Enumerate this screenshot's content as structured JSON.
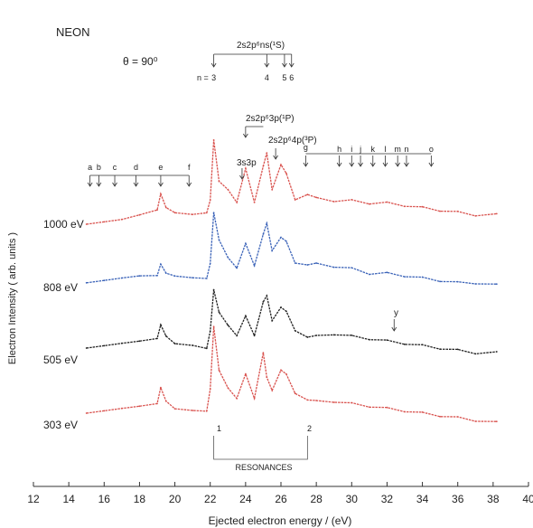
{
  "chart_data": {
    "type": "line",
    "title": "NEON",
    "angle_label": "θ = 90⁰",
    "xlabel": "Ejected electron energy / (eV)",
    "ylabel": "Electron Intensity ( arb. units )",
    "xlim": [
      12,
      40
    ],
    "x_ticks": [
      "12",
      "14",
      "16",
      "18",
      "20",
      "22",
      "24",
      "26",
      "28",
      "30",
      "32",
      "34",
      "36",
      "38",
      "40"
    ],
    "grid": false,
    "legend": "none",
    "series": [
      {
        "name": "1000  eV",
        "color": "#d9534f",
        "x": [
          15.0,
          16.0,
          17.0,
          18.0,
          19.0,
          19.2,
          19.5,
          20.0,
          21.0,
          21.8,
          22.0,
          22.2,
          22.5,
          23.0,
          23.5,
          24.0,
          24.5,
          25.0,
          25.2,
          25.5,
          26.0,
          26.3,
          26.8,
          27.5,
          28.0,
          29.0,
          30.0,
          31.0,
          32.0,
          33.0,
          34.0,
          35.0,
          36.0,
          37.0,
          38.2
        ],
        "y": [
          0.0,
          0.1,
          0.2,
          0.4,
          0.6,
          1.3,
          0.7,
          0.5,
          0.4,
          0.5,
          1.0,
          3.6,
          1.8,
          1.5,
          0.9,
          2.4,
          0.9,
          2.5,
          3.0,
          1.5,
          2.5,
          2.2,
          1.0,
          1.3,
          1.1,
          1.0,
          1.0,
          0.9,
          0.9,
          0.8,
          0.7,
          0.6,
          0.5,
          0.4,
          0.4
        ]
      },
      {
        "name": "808 eV",
        "color": "#3b63b8",
        "x": [
          15.0,
          16.0,
          17.0,
          18.0,
          19.0,
          19.2,
          19.5,
          20.0,
          21.0,
          21.8,
          22.0,
          22.2,
          22.5,
          23.0,
          23.5,
          24.0,
          24.5,
          25.0,
          25.2,
          25.5,
          26.0,
          26.3,
          26.8,
          27.5,
          28.0,
          29.0,
          30.0,
          31.0,
          32.0,
          33.0,
          34.0,
          35.0,
          36.0,
          37.0,
          38.2
        ],
        "y": [
          0.2,
          0.3,
          0.4,
          0.5,
          0.5,
          1.0,
          0.6,
          0.5,
          0.4,
          0.4,
          1.0,
          3.2,
          2.0,
          1.3,
          0.8,
          1.9,
          0.9,
          2.3,
          2.7,
          1.6,
          2.1,
          2.0,
          1.0,
          1.0,
          1.0,
          0.9,
          0.8,
          0.6,
          0.6,
          0.5,
          0.4,
          0.3,
          0.2,
          0.2,
          0.1
        ]
      },
      {
        "name": "505 eV",
        "color": "#222222",
        "x": [
          15.0,
          16.0,
          17.0,
          18.0,
          19.0,
          19.2,
          19.5,
          20.0,
          21.0,
          21.8,
          22.0,
          22.2,
          22.5,
          23.0,
          23.5,
          24.0,
          24.5,
          25.0,
          25.2,
          25.5,
          26.0,
          26.3,
          26.8,
          27.5,
          28.0,
          29.0,
          30.0,
          31.0,
          32.0,
          33.0,
          34.0,
          35.0,
          36.0,
          37.0,
          38.2
        ],
        "y": [
          0.5,
          0.6,
          0.7,
          0.8,
          0.9,
          1.5,
          1.0,
          0.7,
          0.6,
          0.5,
          1.2,
          3.0,
          2.0,
          1.5,
          1.0,
          1.9,
          1.0,
          2.5,
          2.7,
          1.7,
          2.2,
          2.1,
          1.2,
          1.0,
          1.0,
          1.1,
          1.0,
          0.9,
          0.8,
          0.7,
          0.6,
          0.5,
          0.4,
          0.3,
          0.3
        ]
      },
      {
        "name": "303 eV",
        "color": "#d9534f",
        "x": [
          15.0,
          16.0,
          17.0,
          18.0,
          19.0,
          19.2,
          19.5,
          20.0,
          21.0,
          21.8,
          22.0,
          22.2,
          22.5,
          23.0,
          23.5,
          24.0,
          24.5,
          25.0,
          25.2,
          25.5,
          26.0,
          26.3,
          26.8,
          27.5,
          28.0,
          29.0,
          30.0,
          31.0,
          32.0,
          33.0,
          34.0,
          35.0,
          36.0,
          37.0,
          38.2
        ],
        "y": [
          0.5,
          0.6,
          0.7,
          0.8,
          0.9,
          1.6,
          1.0,
          0.7,
          0.6,
          0.6,
          1.5,
          4.2,
          2.3,
          1.6,
          1.1,
          2.2,
          1.1,
          3.1,
          2.0,
          1.5,
          2.3,
          2.2,
          1.3,
          1.1,
          1.0,
          1.0,
          0.9,
          0.8,
          0.7,
          0.6,
          0.5,
          0.4,
          0.3,
          0.2,
          0.1
        ]
      }
    ],
    "annotations": {
      "top_bracket_label": "2s2p⁶ns(¹S)",
      "n_eq": "n =",
      "n_labels": [
        {
          "text": "3",
          "x": 22.2
        },
        {
          "text": "4",
          "x": 25.2
        },
        {
          "text": "5",
          "x": 26.2
        },
        {
          "text": "6",
          "x": 26.6
        }
      ],
      "p3_label": "2s2p⁶3p(¹P)",
      "p4_label": "2s2p⁶4p(³P)",
      "s3p_label": "3s3p",
      "letters_left": [
        {
          "text": "a",
          "x": 15.2
        },
        {
          "text": "b",
          "x": 15.7
        },
        {
          "text": "c",
          "x": 16.6
        },
        {
          "text": "d",
          "x": 17.8
        },
        {
          "text": "e",
          "x": 19.2
        },
        {
          "text": "f",
          "x": 20.8
        }
      ],
      "letters_right": [
        {
          "text": "g",
          "x": 27.4
        },
        {
          "text": "h",
          "x": 29.3
        },
        {
          "text": "i",
          "x": 30.0
        },
        {
          "text": "j",
          "x": 30.5
        },
        {
          "text": "k",
          "x": 31.2
        },
        {
          "text": "l",
          "x": 31.9
        },
        {
          "text": "m",
          "x": 32.6
        },
        {
          "text": "n",
          "x": 33.1
        },
        {
          "text": "o",
          "x": 34.5
        }
      ],
      "y_label": "y",
      "resonance_label": "RESONANCES",
      "resonance_1": "1",
      "resonance_2": "2"
    }
  }
}
